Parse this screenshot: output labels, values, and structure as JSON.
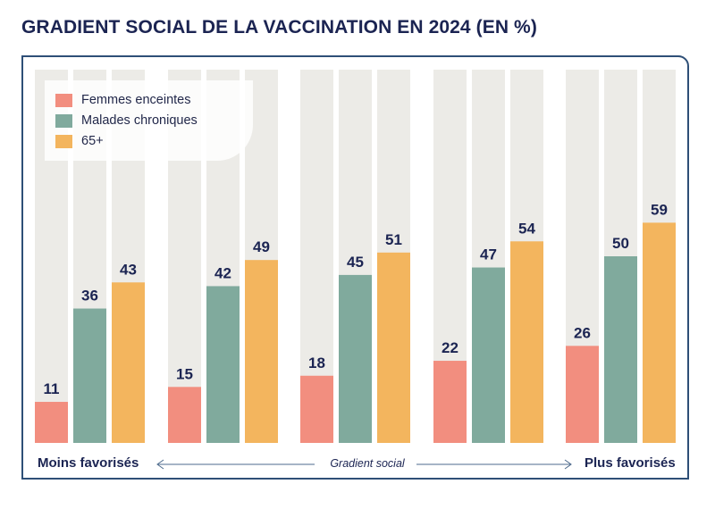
{
  "title": "GRADIENT SOCIAL DE LA VACCINATION EN 2024 (EN %)",
  "chart_data": {
    "type": "bar",
    "title": "GRADIENT SOCIAL DE LA VACCINATION EN 2024 (EN %)",
    "categories": [
      "Moins favorisés",
      "",
      "",
      "",
      "Plus favorisés"
    ],
    "series": [
      {
        "name": "Femmes enceintes",
        "values": [
          11,
          15,
          18,
          22,
          26
        ],
        "color": "#f28e7f"
      },
      {
        "name": "Malades chroniques",
        "values": [
          36,
          42,
          45,
          47,
          50
        ],
        "color": "#80aa9d"
      },
      {
        "name": "65+",
        "values": [
          43,
          49,
          51,
          54,
          59
        ],
        "color": "#f3b55e"
      }
    ],
    "background_bar_color": "#ecebe7",
    "ylim": [
      0,
      100
    ],
    "xlabel": "Gradient social",
    "ylabel": "",
    "legend_position": "top-left",
    "axis_left_label": "Moins favorisés",
    "axis_right_label": "Plus favorisés"
  }
}
